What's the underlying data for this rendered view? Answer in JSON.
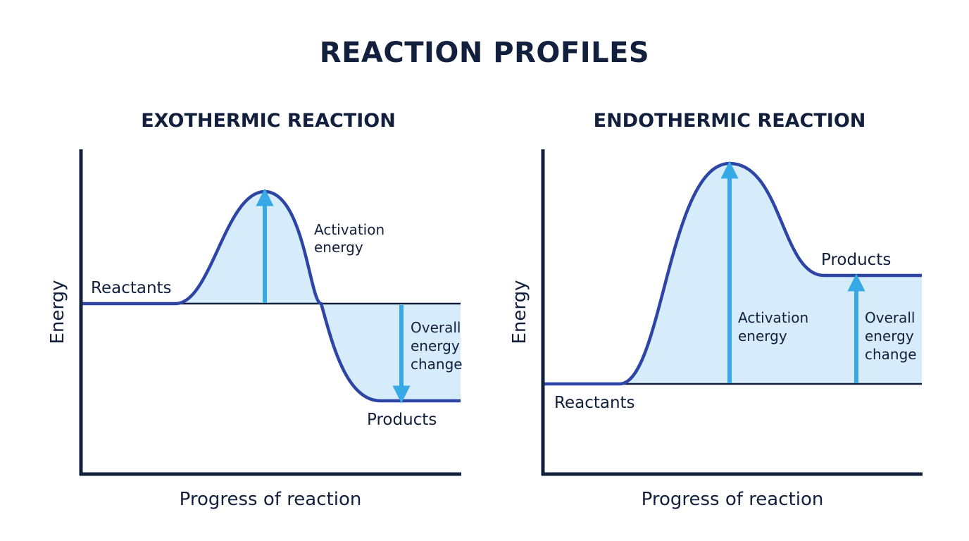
{
  "title": "REACTION PROFILES",
  "colors": {
    "text": "#13203d",
    "axis": "#13203d",
    "curve": "#2d45a5",
    "fill": "#d6ecfa",
    "arrow": "#36a9e6"
  },
  "panels": [
    {
      "title": "EXOTHERMIC REACTION",
      "ylabel": "Energy",
      "xlabel": "Progress of reaction",
      "reactants_label": "Reactants",
      "products_label": "Products",
      "activation": [
        "Activation",
        "energy"
      ],
      "overall": [
        "Overall",
        "energy",
        "change"
      ]
    },
    {
      "title": "ENDOTHERMIC REACTION",
      "ylabel": "Energy",
      "xlabel": "Progress of reaction",
      "reactants_label": "Reactants",
      "products_label": "Products",
      "activation": [
        "Activation",
        "energy"
      ],
      "overall": [
        "Overall",
        "energy",
        "change"
      ]
    }
  ]
}
